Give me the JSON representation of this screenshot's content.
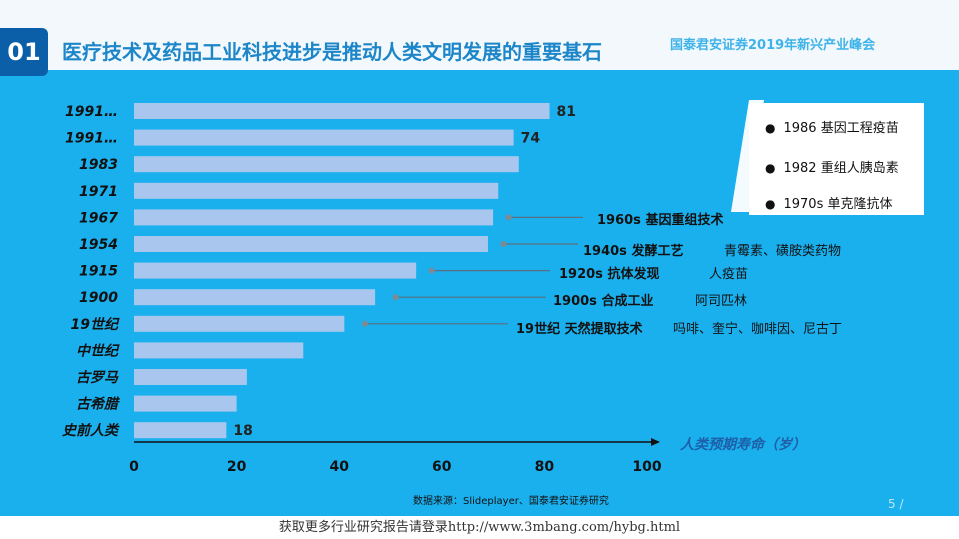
{
  "header": {
    "badge": "01",
    "title": "医疗技术及药品工业科技进步是推动人类文明发展的重要基石",
    "brand": "国泰君安证券2019年新兴产业峰会"
  },
  "legend": {
    "items": [
      "1986  基因工程疫苗",
      "1982  重组人胰岛素",
      "1970s 单克隆抗体"
    ]
  },
  "annotations": [
    {
      "label": "1960s  基因重组技术",
      "examples": ""
    },
    {
      "label": "1940s 发酵工艺",
      "examples": "青霉素、磺胺类药物"
    },
    {
      "label": "1920s 抗体发现",
      "examples": "人疫苗"
    },
    {
      "label": "1900s 合成工业",
      "examples": "阿司匹林"
    },
    {
      "label": "19世纪 天然提取技术",
      "examples": "吗啡、奎宁、咖啡因、尼古丁"
    }
  ],
  "chart_data": {
    "type": "bar",
    "orientation": "horizontal",
    "title": "",
    "xlabel": "人类预期寿命（岁）",
    "ylabel": "",
    "xlim": [
      0,
      100
    ],
    "xticks": [
      0,
      20,
      40,
      60,
      80,
      100
    ],
    "categories": [
      "1991…",
      "1991…",
      "1983",
      "1971",
      "1967",
      "1954",
      "1915",
      "1900",
      "19世纪",
      "中世纪",
      "古罗马",
      "古希腊",
      "史前人类"
    ],
    "values": [
      81,
      74,
      75,
      71,
      70,
      69,
      55,
      47,
      41,
      33,
      22,
      20,
      18
    ],
    "data_labels": [
      {
        "index": 0,
        "text": "81"
      },
      {
        "index": 1,
        "text": "74"
      },
      {
        "index": 12,
        "text": "18"
      }
    ],
    "annotation_points": [
      {
        "category_index": 4,
        "x": 73
      },
      {
        "category_index": 5,
        "x": 72
      },
      {
        "category_index": 6,
        "x": 58
      },
      {
        "category_index": 7,
        "x": 51
      },
      {
        "category_index": 8,
        "x": 45
      }
    ],
    "bar_color": "#a9c7ee"
  },
  "source": "数据来源：Slideplayer、国泰君安证券研究",
  "page_number": "5 /",
  "footer": "获取更多行业研究报告请登录http://www.3mbang.com/hybg.html"
}
